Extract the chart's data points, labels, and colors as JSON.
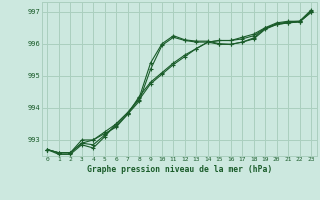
{
  "title": "Graphe pression niveau de la mer (hPa)",
  "bg_color": "#cce8df",
  "grid_color": "#aacfbf",
  "line_color": "#1a5c2a",
  "ylim": [
    992.5,
    997.3
  ],
  "yticks": [
    993,
    994,
    995,
    996,
    997
  ],
  "xlim": [
    -0.5,
    23.5
  ],
  "xticks": [
    0,
    1,
    2,
    3,
    4,
    5,
    6,
    7,
    8,
    9,
    10,
    11,
    12,
    13,
    14,
    15,
    16,
    17,
    18,
    19,
    20,
    21,
    22,
    23
  ],
  "series": [
    [
      992.7,
      992.6,
      992.6,
      993.0,
      993.0,
      993.2,
      993.4,
      993.8,
      994.35,
      994.8,
      995.1,
      995.4,
      995.65,
      995.85,
      996.05,
      996.1,
      996.1,
      996.2,
      996.3,
      996.5,
      996.65,
      996.7,
      996.7,
      997.05
    ],
    [
      992.7,
      992.6,
      992.6,
      992.9,
      993.0,
      993.25,
      993.5,
      993.85,
      994.25,
      994.75,
      995.05,
      995.35,
      995.6,
      995.85,
      996.05,
      996.1,
      996.1,
      996.15,
      996.25,
      996.48,
      996.62,
      996.68,
      996.7,
      997.02
    ],
    [
      992.7,
      992.6,
      992.6,
      992.9,
      992.85,
      993.15,
      993.45,
      993.8,
      994.2,
      995.2,
      995.95,
      996.2,
      996.1,
      996.05,
      996.05,
      995.98,
      995.98,
      996.05,
      996.15,
      996.45,
      996.6,
      996.65,
      996.68,
      996.98
    ],
    [
      992.7,
      992.55,
      992.55,
      992.85,
      992.75,
      993.1,
      993.5,
      993.85,
      994.3,
      995.4,
      996.0,
      996.25,
      996.12,
      996.08,
      996.08,
      996.0,
      995.98,
      996.05,
      996.18,
      996.48,
      996.6,
      996.65,
      996.68,
      996.98
    ]
  ]
}
